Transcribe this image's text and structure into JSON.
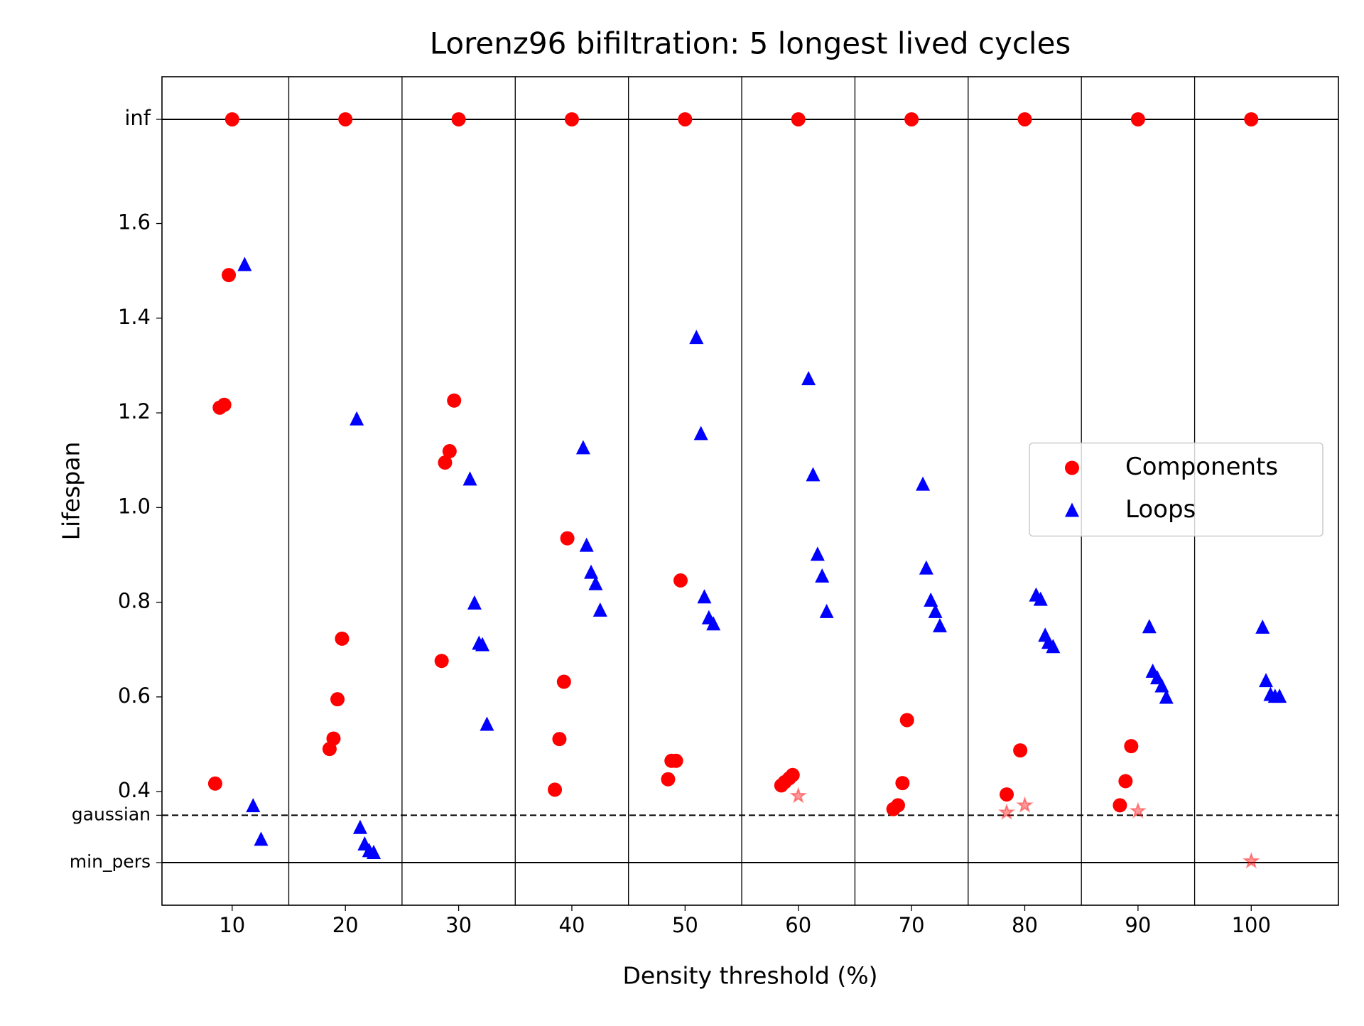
{
  "chart_data": {
    "type": "scatter",
    "title": "Lorenz96 bifiltration: 5 longest lived cycles",
    "xlabel": "Density threshold (%)",
    "ylabel": "Lifespan",
    "xlim": [
      3.8,
      107.7
    ],
    "ylim": [
      0.16,
      1.91
    ],
    "xticks": [
      10,
      20,
      30,
      40,
      50,
      60,
      70,
      80,
      90,
      100
    ],
    "yticks": [
      {
        "value": 0.25,
        "label": "min_pers",
        "line": "solid"
      },
      {
        "value": 0.35,
        "label": "gaussian",
        "line": "dashed"
      },
      0.4,
      0.6,
      0.8,
      {
        "value": 1,
        "label": "1.0"
      },
      1.2,
      1.4,
      1.6,
      {
        "value": 1.82,
        "label": "inf",
        "line": "solid"
      }
    ],
    "vlines": [
      15,
      25,
      35,
      45,
      55,
      65,
      75,
      85,
      95
    ],
    "legend": "center right",
    "series": [
      {
        "name": "Components",
        "color": "#ff0000",
        "marker": "circle",
        "x": [
          10,
          20,
          30,
          40,
          50,
          60,
          70,
          80,
          90,
          100,
          9.7,
          8.9,
          9.3,
          8.5,
          19.7,
          19.3,
          18.95,
          18.6,
          29.6,
          29.2,
          28.8,
          28.5,
          39.6,
          39.3,
          38.9,
          38.5,
          49.6,
          49.2,
          48.8,
          48.5,
          59.5,
          59.2,
          58.8,
          58.5,
          69.6,
          69.2,
          68.8,
          68.4,
          79.6,
          78.4,
          89.4,
          88.9,
          88.4
        ],
        "values": [
          1.82,
          1.82,
          1.82,
          1.82,
          1.82,
          1.82,
          1.82,
          1.82,
          1.82,
          1.82,
          1.491,
          1.211,
          1.217,
          0.417,
          0.723,
          0.595,
          0.512,
          0.49,
          1.226,
          1.119,
          1.095,
          0.676,
          0.935,
          0.632,
          0.511,
          0.404,
          0.846,
          0.465,
          0.465,
          0.426,
          0.435,
          0.428,
          0.42,
          0.413,
          0.551,
          0.418,
          0.371,
          0.363,
          0.487,
          0.394,
          0.496,
          0.422,
          0.371
        ]
      },
      {
        "name": "Loops",
        "color": "#0000ff",
        "marker": "triangle",
        "x": [
          11.1,
          11.85,
          12.55,
          21.0,
          21.3,
          21.7,
          22.1,
          22.5,
          31.0,
          31.4,
          31.8,
          32.1,
          32.5,
          41.0,
          41.3,
          41.7,
          42.1,
          42.5,
          51.0,
          51.4,
          51.7,
          52.1,
          52.5,
          60.9,
          61.3,
          61.7,
          62.1,
          62.5,
          71.0,
          71.3,
          71.7,
          72.1,
          72.5,
          81.0,
          81.4,
          81.8,
          82.1,
          82.5,
          91.0,
          91.3,
          91.7,
          92.1,
          92.5,
          101.0,
          101.3,
          101.7,
          102.1,
          102.5
        ],
        "values": [
          1.513,
          0.37,
          0.299,
          1.187,
          0.324,
          0.289,
          0.275,
          0.271,
          1.06,
          0.798,
          0.713,
          0.71,
          0.542,
          1.126,
          0.92,
          0.863,
          0.839,
          0.783,
          1.359,
          1.156,
          0.811,
          0.767,
          0.754,
          1.272,
          1.069,
          0.901,
          0.855,
          0.78,
          1.049,
          0.872,
          0.804,
          0.78,
          0.75,
          0.815,
          0.806,
          0.73,
          0.715,
          0.706,
          0.748,
          0.654,
          0.64,
          0.623,
          0.599,
          0.747,
          0.634,
          0.605,
          0.601,
          0.601
        ]
      },
      {
        "color": "#ff0000",
        "marker": "star",
        "alpha": 0.4,
        "x": [
          60.0,
          78.4,
          80.0,
          90.0,
          100
        ],
        "values": [
          0.391,
          0.356,
          0.371,
          0.359,
          0.253
        ]
      }
    ]
  }
}
